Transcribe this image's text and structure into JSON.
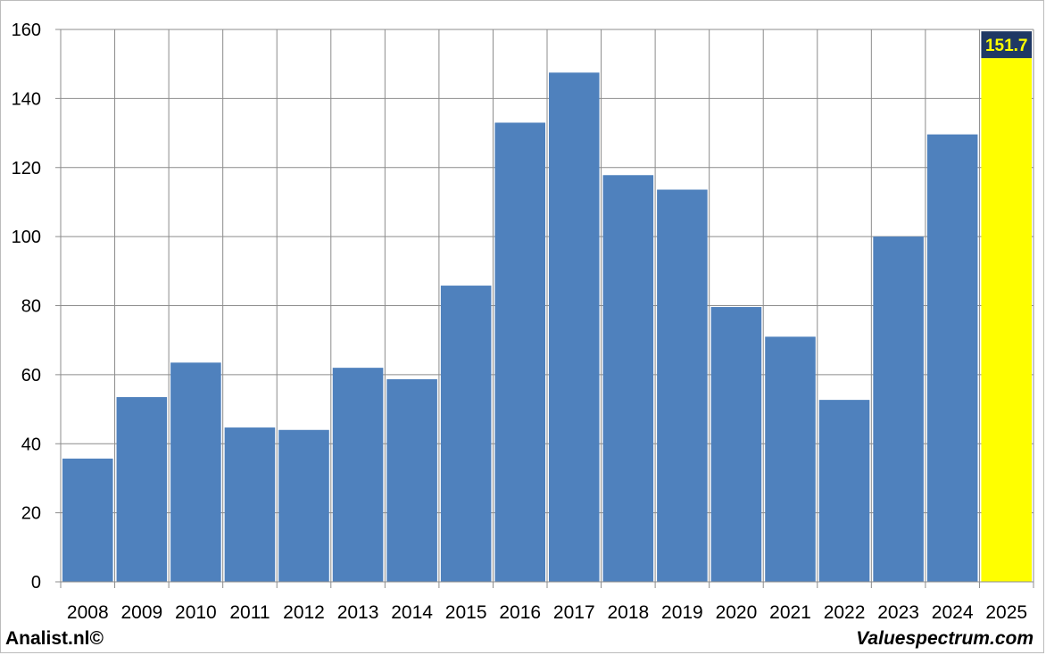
{
  "chart_data": {
    "type": "bar",
    "categories": [
      "2008",
      "2009",
      "2010",
      "2011",
      "2012",
      "2013",
      "2014",
      "2015",
      "2016",
      "2017",
      "2018",
      "2019",
      "2020",
      "2021",
      "2022",
      "2023",
      "2024",
      "2025"
    ],
    "values": [
      35.7,
      53.5,
      63.5,
      44.7,
      44,
      62,
      58.7,
      85.8,
      133,
      147.5,
      117.8,
      113.6,
      79.6,
      71,
      52.7,
      100,
      129.6,
      151.7
    ],
    "highlight_index": 17,
    "highlight_label": "151.7",
    "y_ticks": [
      0,
      20,
      40,
      60,
      80,
      100,
      120,
      140,
      160
    ],
    "ylim": [
      0,
      160
    ],
    "grid": true,
    "colors": {
      "bar": "#4f81bd",
      "highlight_bar": "#ffff00",
      "label_bg": "#1f3864",
      "label_text": "#ffff00",
      "grid": "#8c8c8c"
    }
  },
  "footer": {
    "left": "Analist.nl©",
    "right": "Valuespectrum.com"
  }
}
